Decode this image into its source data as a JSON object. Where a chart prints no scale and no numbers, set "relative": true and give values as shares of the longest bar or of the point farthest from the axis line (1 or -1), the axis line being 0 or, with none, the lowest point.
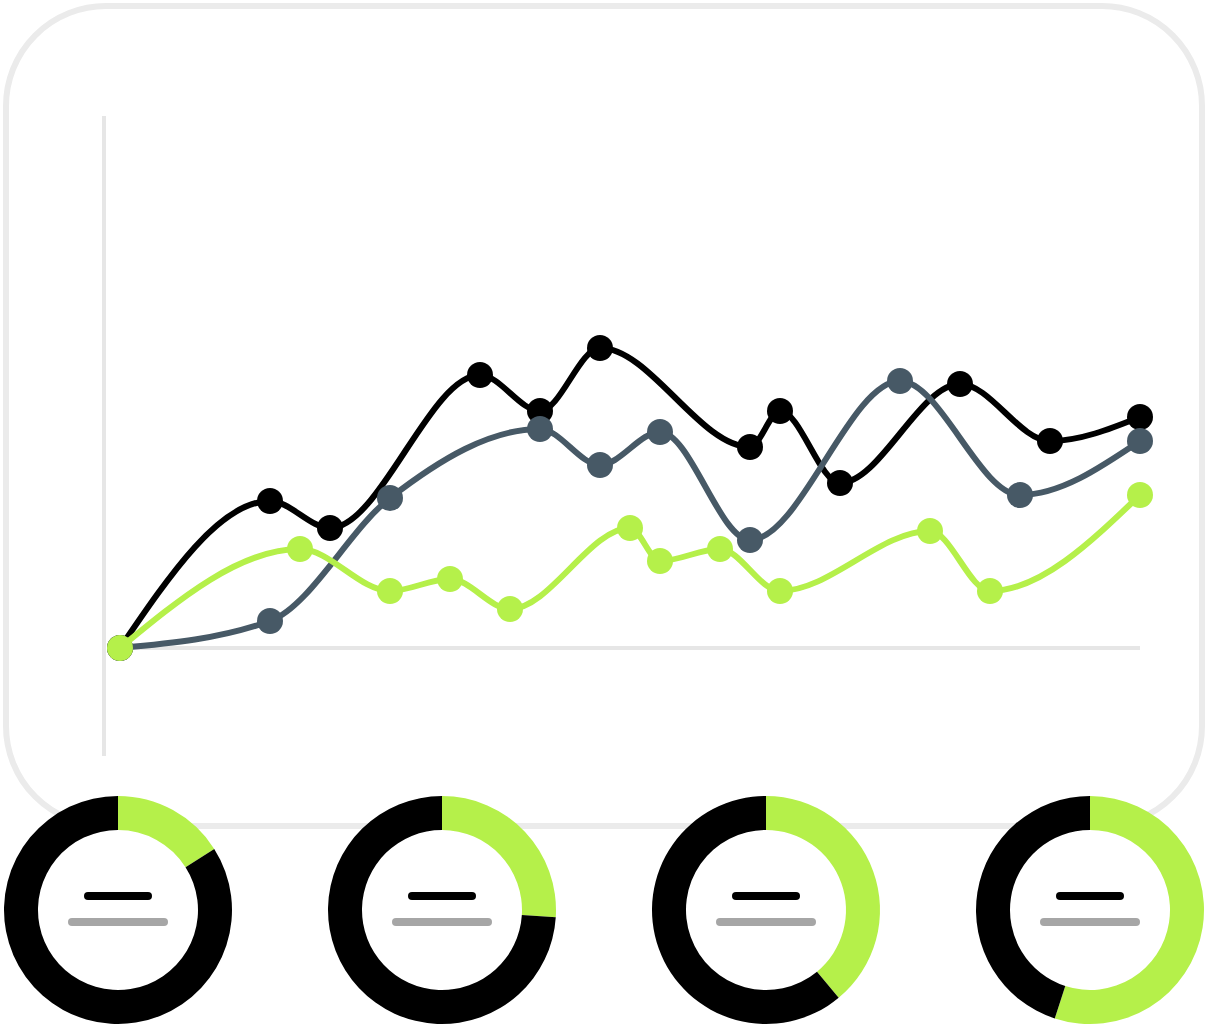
{
  "chart_data": [
    {
      "type": "line",
      "relative": true,
      "marker": "circle",
      "categories": [
        null,
        null,
        null,
        null,
        null,
        null,
        null,
        null,
        null,
        null,
        null,
        null,
        null,
        null,
        null,
        null,
        null,
        null,
        null,
        null,
        null,
        null,
        null,
        null,
        null,
        null,
        null,
        null,
        null,
        null,
        null,
        null,
        null,
        null,
        null
      ],
      "series": [
        {
          "color": "#000000",
          "values": [
            0,
            null,
            null,
            null,
            null,
            0.49,
            null,
            0.4,
            null,
            null,
            null,
            null,
            0.91,
            null,
            0.79,
            null,
            1,
            null,
            null,
            null,
            null,
            0.67,
            0.79,
            null,
            0.55,
            null,
            null,
            null,
            0.88,
            null,
            null,
            0.69,
            null,
            null,
            0.77
          ]
        },
        {
          "color": "#475966",
          "values": [
            0,
            null,
            null,
            null,
            null,
            0.09,
            null,
            null,
            null,
            0.5,
            null,
            null,
            null,
            null,
            0.73,
            null,
            0.61,
            null,
            0.72,
            null,
            null,
            0.36,
            null,
            null,
            null,
            null,
            0.89,
            null,
            null,
            null,
            0.51,
            null,
            null,
            null,
            0.69
          ]
        },
        {
          "color": "#b5f04a",
          "values": [
            0,
            null,
            null,
            null,
            null,
            null,
            0.33,
            null,
            null,
            0.19,
            null,
            0.23,
            null,
            0.13,
            null,
            null,
            null,
            0.4,
            0.29,
            null,
            0.33,
            null,
            0.19,
            null,
            null,
            null,
            null,
            0.39,
            null,
            0.19,
            null,
            null,
            null,
            null,
            0.51
          ]
        }
      ]
    },
    {
      "type": "donut",
      "categories": [
        null,
        null
      ],
      "values": [
        16,
        84
      ],
      "colors": [
        "#b5f04a",
        "#000000"
      ]
    },
    {
      "type": "donut",
      "categories": [
        null,
        null
      ],
      "values": [
        26,
        74
      ],
      "colors": [
        "#b5f04a",
        "#000000"
      ]
    },
    {
      "type": "donut",
      "categories": [
        null,
        null
      ],
      "values": [
        39,
        61
      ],
      "colors": [
        "#b5f04a",
        "#000000"
      ]
    },
    {
      "type": "donut",
      "categories": [
        null,
        null
      ],
      "values": [
        55,
        45
      ],
      "colors": [
        "#b5f04a",
        "#000000"
      ]
    }
  ]
}
